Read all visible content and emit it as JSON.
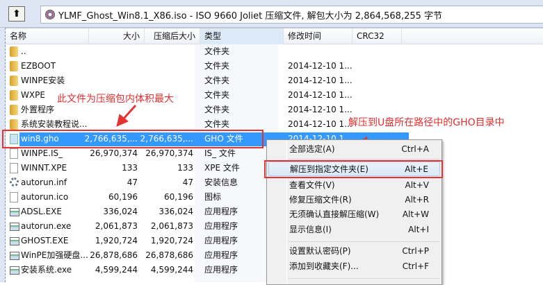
{
  "toolbar": {
    "up_icon": "up-folder-icon",
    "path": "YLMF_Ghost_Win8.1_X86.iso - ISO 9660 Joliet 压缩文件, 解包大小为 2,864,568,255 字节"
  },
  "columns": [
    "名称",
    "大小",
    "压缩后大小",
    "类型",
    "修改时间",
    "CRC32"
  ],
  "rows": [
    {
      "name": "..",
      "size": "",
      "packed": "",
      "type": "文件夹",
      "date": "",
      "icon": "folder"
    },
    {
      "name": "EZBOOT",
      "size": "",
      "packed": "",
      "type": "文件夹",
      "date": "2014-12-10 1...",
      "icon": "folder"
    },
    {
      "name": "WINPE安装",
      "size": "",
      "packed": "",
      "type": "文件夹",
      "date": "2014-12-10 1...",
      "icon": "folder"
    },
    {
      "name": "WXPE",
      "size": "",
      "packed": "",
      "type": "文件夹",
      "date": "2014-12-10 1...",
      "icon": "folder"
    },
    {
      "name": "外置程序",
      "size": "",
      "packed": "",
      "type": "文件夹",
      "date": "2014-12-10 1...",
      "icon": "folder"
    },
    {
      "name": "系统安装教程说...",
      "size": "",
      "packed": "",
      "type": "文件夹",
      "date": "2014-12-10 1...",
      "icon": "folder"
    },
    {
      "name": "win8.gho",
      "size": "2,766,635,...",
      "packed": "2,766,635,...",
      "type": "GHO 文件",
      "date": "2014-12-10 1...",
      "icon": "file",
      "selected": true
    },
    {
      "name": "WINPE.IS_",
      "size": "26,970,374",
      "packed": "26,970,374",
      "type": "IS_ 文件",
      "date": "",
      "icon": "file"
    },
    {
      "name": "WINNT.XPE",
      "size": "133",
      "packed": "133",
      "type": "XPE 文件",
      "date": "",
      "icon": "file"
    },
    {
      "name": "autorun.inf",
      "size": "47",
      "packed": "47",
      "type": "安装信息",
      "date": "",
      "icon": "settings"
    },
    {
      "name": "autorun.ico",
      "size": "60,196",
      "packed": "60,196",
      "type": "图标",
      "date": "",
      "icon": "file"
    },
    {
      "name": "ADSL.EXE",
      "size": "336,024",
      "packed": "336,024",
      "type": "应用程序",
      "date": "",
      "icon": "exe"
    },
    {
      "name": "autorun.exe",
      "size": "2,061,873",
      "packed": "2,061,873",
      "type": "应用程序",
      "date": "",
      "icon": "exe"
    },
    {
      "name": "GHOST.EXE",
      "size": "1,920,724",
      "packed": "1,920,724",
      "type": "应用程序",
      "date": "",
      "icon": "exe"
    },
    {
      "name": "WinPE加强硬盘...",
      "size": "26,878,686",
      "packed": "26,878,686",
      "type": "应用程序",
      "date": "",
      "icon": "exe"
    },
    {
      "name": "安装系统.exe",
      "size": "4,599,244",
      "packed": "4,599,244",
      "type": "应用程序",
      "date": "",
      "icon": "exe"
    }
  ],
  "menu": [
    {
      "label": "全部选定(A)",
      "shortcut": "Ctrl+A"
    },
    {
      "label": "解压到指定文件夹(E)",
      "shortcut": "Alt+E",
      "highlighted": true
    },
    {
      "label": "查看文件(V)",
      "shortcut": "Alt+V"
    },
    {
      "label": "修复压缩文件(R)",
      "shortcut": "Alt+R"
    },
    {
      "label": "无须确认直接解压缩(W)",
      "shortcut": "Alt+W"
    },
    {
      "label": "显示信息(I)",
      "shortcut": "Alt+I"
    },
    {
      "label": "设置默认密码(P)",
      "shortcut": "Ctrl+P"
    },
    {
      "label": "添加到收藏夹(F)...",
      "shortcut": "Ctrl+F"
    }
  ],
  "annotations": {
    "note1": "此文件为压缩包内体积最大",
    "note2": "解压到U盘所在路径中的GHO目录中",
    "color": "#e0302f"
  }
}
